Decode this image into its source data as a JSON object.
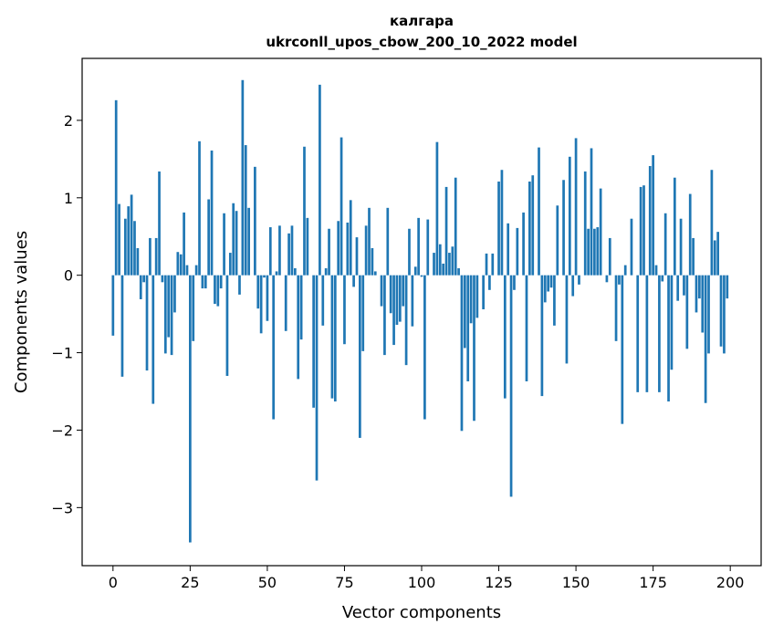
{
  "chart_data": {
    "type": "bar",
    "title_line1": "калгара",
    "title_line2": "ukrconll_upos_cbow_200_10_2022 model",
    "xlabel": "Vector components",
    "ylabel": "Components values",
    "xlim": [
      -10,
      210
    ],
    "ylim": [
      -3.75,
      2.8
    ],
    "xticks": [
      0,
      25,
      50,
      75,
      100,
      125,
      150,
      175,
      200
    ],
    "yticks": [
      -3,
      -2,
      -1,
      0,
      1,
      2
    ],
    "ytick_labels": [
      "−3",
      "−2",
      "−1",
      "0",
      "1",
      "2"
    ],
    "bar_color": "#1f77b4",
    "grid": false,
    "x": [
      0,
      1,
      2,
      3,
      4,
      5,
      6,
      7,
      8,
      9,
      10,
      11,
      12,
      13,
      14,
      15,
      16,
      17,
      18,
      19,
      20,
      21,
      22,
      23,
      24,
      25,
      26,
      27,
      28,
      29,
      30,
      31,
      32,
      33,
      34,
      35,
      36,
      37,
      38,
      39,
      40,
      41,
      42,
      43,
      44,
      45,
      46,
      47,
      48,
      49,
      50,
      51,
      52,
      53,
      54,
      55,
      56,
      57,
      58,
      59,
      60,
      61,
      62,
      63,
      64,
      65,
      66,
      67,
      68,
      69,
      70,
      71,
      72,
      73,
      74,
      75,
      76,
      77,
      78,
      79,
      80,
      81,
      82,
      83,
      84,
      85,
      86,
      87,
      88,
      89,
      90,
      91,
      92,
      93,
      94,
      95,
      96,
      97,
      98,
      99,
      100,
      101,
      102,
      103,
      104,
      105,
      106,
      107,
      108,
      109,
      110,
      111,
      112,
      113,
      114,
      115,
      116,
      117,
      118,
      119,
      120,
      121,
      122,
      123,
      124,
      125,
      126,
      127,
      128,
      129,
      130,
      131,
      132,
      133,
      134,
      135,
      136,
      137,
      138,
      139,
      140,
      141,
      142,
      143,
      144,
      145,
      146,
      147,
      148,
      149,
      150,
      151,
      152,
      153,
      154,
      155,
      156,
      157,
      158,
      159,
      160,
      161,
      162,
      163,
      164,
      165,
      166,
      167,
      168,
      169,
      170,
      171,
      172,
      173,
      174,
      175,
      176,
      177,
      178,
      179,
      180,
      181,
      182,
      183,
      184,
      185,
      186,
      187,
      188,
      189,
      190,
      191,
      192,
      193,
      194,
      195,
      196,
      197,
      198,
      199
    ],
    "values": [
      -0.78,
      2.26,
      0.92,
      -1.31,
      0.73,
      0.89,
      1.04,
      0.7,
      0.35,
      -0.31,
      -0.09,
      -1.23,
      0.48,
      -1.66,
      0.48,
      1.34,
      -0.09,
      -1.01,
      -0.8,
      -1.03,
      -0.48,
      0.3,
      0.27,
      0.81,
      0.13,
      -3.45,
      -0.85,
      0.13,
      1.73,
      -0.17,
      -0.17,
      0.98,
      1.61,
      -0.37,
      -0.4,
      -0.17,
      0.8,
      -1.3,
      0.29,
      0.93,
      0.83,
      -0.25,
      2.52,
      1.68,
      0.87,
      0.0,
      1.4,
      -0.43,
      -0.75,
      -0.03,
      -0.59,
      0.62,
      -1.86,
      0.05,
      0.64,
      0.0,
      -0.72,
      0.54,
      0.64,
      0.09,
      -1.34,
      -0.83,
      1.66,
      0.74,
      0.0,
      -1.71,
      -2.65,
      2.46,
      -0.65,
      0.09,
      0.6,
      -1.59,
      -1.63,
      0.7,
      1.78,
      -0.89,
      0.68,
      0.97,
      -0.15,
      0.49,
      -2.1,
      -0.98,
      0.64,
      0.87,
      0.35,
      0.05,
      0.0,
      -0.4,
      -1.03,
      0.87,
      -0.49,
      -0.9,
      -0.64,
      -0.6,
      -0.4,
      -1.16,
      0.6,
      -0.66,
      0.11,
      0.74,
      -0.02,
      -1.86,
      0.72,
      0.0,
      0.29,
      1.72,
      0.4,
      0.15,
      1.14,
      0.29,
      0.37,
      1.26,
      0.09,
      -2.01,
      -0.94,
      -1.37,
      -0.62,
      -1.88,
      -0.55,
      0.0,
      -0.44,
      0.28,
      -0.19,
      0.28,
      0.0,
      1.21,
      1.36,
      -1.59,
      0.67,
      -2.86,
      -0.19,
      0.61,
      0.0,
      0.81,
      -1.37,
      1.21,
      1.29,
      0.0,
      1.65,
      -1.56,
      -0.35,
      -0.21,
      -0.16,
      -0.65,
      0.9,
      0.0,
      1.23,
      -1.14,
      1.53,
      -0.27,
      1.77,
      -0.12,
      0.0,
      1.34,
      0.6,
      1.64,
      0.6,
      0.62,
      1.12,
      0.0,
      -0.09,
      0.48,
      0.0,
      -0.85,
      -0.12,
      -1.92,
      0.13,
      0.0,
      0.73,
      0.0,
      -1.51,
      1.14,
      1.16,
      -1.51,
      1.41,
      1.55,
      0.13,
      -1.51,
      -0.08,
      0.8,
      -1.63,
      -1.22,
      1.26,
      -0.33,
      0.73,
      -0.26,
      -0.95,
      1.05,
      0.48,
      -0.48,
      -0.3,
      -0.74,
      -1.65,
      -1.01,
      1.36,
      0.45,
      0.56,
      -0.92,
      -1.01,
      -0.3
    ]
  }
}
